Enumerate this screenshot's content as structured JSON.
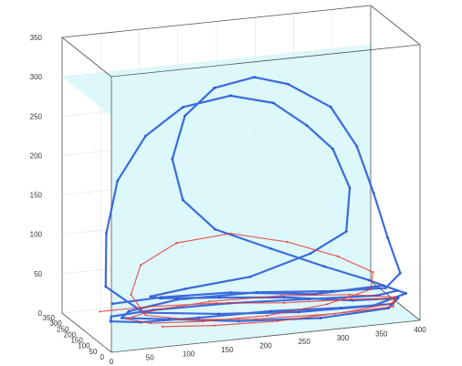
{
  "chart_data": {
    "type": "line",
    "title": "",
    "xlabel": "",
    "ylabel": "",
    "zlabel": "",
    "x_ticks": [
      0,
      50,
      100,
      150,
      200,
      250,
      300,
      350,
      400
    ],
    "y_ticks": [
      0,
      50,
      100,
      150,
      200,
      250,
      300,
      350
    ],
    "z_ticks": [
      0,
      50,
      100,
      150,
      200,
      250,
      300,
      350
    ],
    "xlim": [
      0,
      400
    ],
    "ylim": [
      0,
      350
    ],
    "zlim": [
      0,
      350
    ],
    "grid": true,
    "water_level": 300,
    "colors": {
      "series_a": "#2a5bd7",
      "series_b": "#e8322e",
      "water": "#d6f7fa",
      "frame": "#555555"
    },
    "series": [
      {
        "color_key": "series_a",
        "points": [
          [
            60,
            320,
            10
          ],
          [
            120,
            300,
            15
          ],
          [
            200,
            250,
            20
          ],
          [
            300,
            200,
            15
          ],
          [
            380,
            150,
            25
          ],
          [
            400,
            100,
            20
          ],
          [
            350,
            60,
            15
          ],
          [
            250,
            40,
            20
          ],
          [
            150,
            60,
            25
          ],
          [
            60,
            100,
            30
          ],
          [
            20,
            150,
            60
          ],
          [
            30,
            200,
            120
          ],
          [
            50,
            230,
            180
          ],
          [
            90,
            250,
            230
          ],
          [
            140,
            260,
            260
          ],
          [
            200,
            250,
            270
          ],
          [
            250,
            220,
            260
          ],
          [
            290,
            200,
            230
          ],
          [
            320,
            180,
            200
          ],
          [
            340,
            170,
            150
          ],
          [
            330,
            140,
            100
          ],
          [
            280,
            120,
            80
          ],
          [
            200,
            110,
            60
          ],
          [
            120,
            130,
            50
          ],
          [
            80,
            160,
            40
          ],
          [
            100,
            200,
            30
          ],
          [
            180,
            220,
            20
          ],
          [
            260,
            200,
            15
          ],
          [
            340,
            150,
            10
          ],
          [
            390,
            100,
            15
          ],
          [
            370,
            60,
            10
          ],
          [
            280,
            50,
            8
          ],
          [
            180,
            80,
            10
          ],
          [
            100,
            140,
            12
          ],
          [
            50,
            200,
            10
          ],
          [
            70,
            260,
            8
          ],
          [
            140,
            300,
            10
          ],
          [
            240,
            280,
            12
          ],
          [
            330,
            240,
            10
          ],
          [
            390,
            190,
            15
          ],
          [
            400,
            140,
            40
          ],
          [
            380,
            120,
            90
          ],
          [
            360,
            110,
            150
          ],
          [
            340,
            120,
            210
          ],
          [
            310,
            140,
            260
          ],
          [
            260,
            170,
            290
          ],
          [
            220,
            190,
            300
          ],
          [
            170,
            200,
            290
          ],
          [
            130,
            190,
            260
          ],
          [
            110,
            170,
            210
          ],
          [
            120,
            150,
            160
          ],
          [
            160,
            140,
            120
          ],
          [
            230,
            130,
            90
          ],
          [
            300,
            130,
            60
          ],
          [
            360,
            140,
            35
          ],
          [
            400,
            160,
            15
          ],
          [
            380,
            200,
            5
          ],
          [
            300,
            240,
            3
          ],
          [
            200,
            260,
            5
          ],
          [
            100,
            250,
            8
          ],
          [
            40,
            220,
            10
          ],
          [
            30,
            170,
            12
          ],
          [
            60,
            120,
            15
          ],
          [
            130,
            90,
            18
          ],
          [
            220,
            70,
            20
          ],
          [
            310,
            70,
            15
          ],
          [
            380,
            90,
            10
          ]
        ]
      },
      {
        "color_key": "series_b",
        "points": [
          [
            40,
            300,
            5
          ],
          [
            100,
            280,
            8
          ],
          [
            180,
            240,
            10
          ],
          [
            260,
            200,
            8
          ],
          [
            340,
            160,
            10
          ],
          [
            390,
            120,
            12
          ],
          [
            380,
            80,
            8
          ],
          [
            300,
            60,
            10
          ],
          [
            200,
            70,
            12
          ],
          [
            120,
            100,
            15
          ],
          [
            70,
            140,
            20
          ],
          [
            60,
            190,
            40
          ],
          [
            80,
            230,
            70
          ],
          [
            130,
            250,
            90
          ],
          [
            200,
            250,
            95
          ],
          [
            270,
            230,
            80
          ],
          [
            330,
            200,
            60
          ],
          [
            370,
            170,
            40
          ],
          [
            360,
            130,
            25
          ],
          [
            300,
            110,
            15
          ],
          [
            220,
            100,
            10
          ],
          [
            140,
            120,
            8
          ],
          [
            80,
            160,
            6
          ],
          [
            60,
            220,
            5
          ],
          [
            100,
            270,
            4
          ],
          [
            180,
            290,
            5
          ],
          [
            270,
            270,
            6
          ],
          [
            350,
            230,
            5
          ],
          [
            400,
            180,
            4
          ],
          [
            390,
            140,
            3
          ],
          [
            320,
            100,
            4
          ],
          [
            230,
            80,
            5
          ],
          [
            150,
            90,
            6
          ],
          [
            90,
            130,
            5
          ]
        ]
      }
    ]
  }
}
